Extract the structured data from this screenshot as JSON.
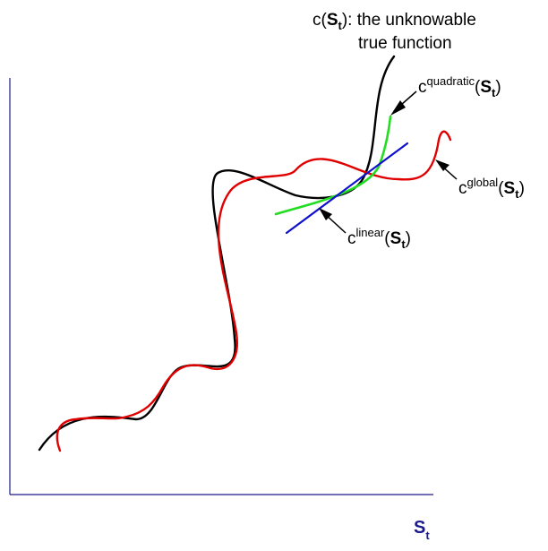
{
  "colors": {
    "axis": "#1a1a8c",
    "true_function": "#000000",
    "global_fit": "#e00000",
    "quadratic_fit": "#22dd22",
    "linear_fit": "#1010cc",
    "label_text": "#000000",
    "x_axis_label": "#1a1a8c"
  },
  "labels": {
    "true_function": {
      "func": "c(",
      "arg": "S",
      "arg_sub": "t",
      "close_colon": "):  the unknowable",
      "line2": "true function"
    },
    "quadratic": {
      "func": "c",
      "sup": "quadratic",
      "open": "(",
      "arg": "S",
      "arg_sub": "t",
      "close": ")"
    },
    "global": {
      "func": "c",
      "sup": "global",
      "open": "(",
      "arg": "S",
      "arg_sub": "t",
      "close": ")"
    },
    "linear": {
      "func": "c",
      "sup": "linear",
      "open": "(",
      "arg": "S",
      "arg_sub": "t",
      "close": ")"
    },
    "x_axis": {
      "main": "S",
      "sub": "t"
    }
  }
}
